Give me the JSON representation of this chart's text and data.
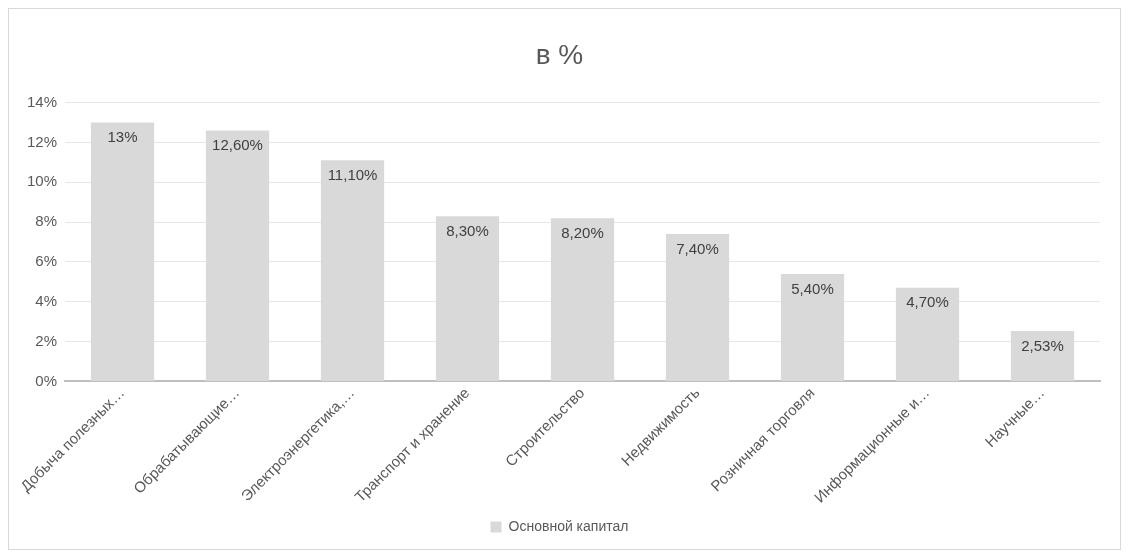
{
  "chart_data": {
    "type": "bar",
    "title": "в %",
    "categories": [
      "Добыча полезных…",
      "Обрабатывающие…",
      "Электроэнергетика,…",
      "Транспорт и хранение",
      "Строительство",
      "Недвижимость",
      "Розничная торговля",
      "Информационные и…",
      "Научные…"
    ],
    "series": [
      {
        "name": "Основной капитал",
        "color": "#d9d9d9",
        "values": [
          13,
          12.6,
          11.1,
          8.3,
          8.2,
          7.4,
          5.4,
          4.7,
          2.53
        ],
        "value_labels": [
          "13%",
          "12,60%",
          "11,10%",
          "8,30%",
          "8,20%",
          "7,40%",
          "5,40%",
          "4,70%",
          "2,53%"
        ]
      }
    ],
    "ylim": [
      0,
      14
    ],
    "yticks": [
      {
        "value": 0,
        "label": "0%"
      },
      {
        "value": 2,
        "label": "2%"
      },
      {
        "value": 4,
        "label": "4%"
      },
      {
        "value": 6,
        "label": "6%"
      },
      {
        "value": 8,
        "label": "8%"
      },
      {
        "value": 10,
        "label": "10%"
      },
      {
        "value": 12,
        "label": "12%"
      },
      {
        "value": 14,
        "label": "14%"
      }
    ],
    "grid": "y",
    "legend": "bottom"
  }
}
